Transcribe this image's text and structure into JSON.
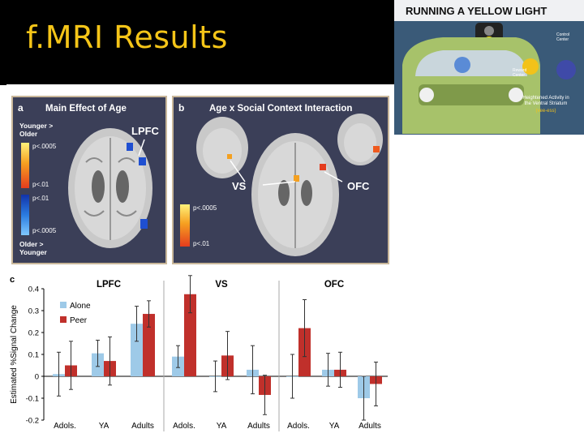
{
  "slide": {
    "title": "f.MRI Results"
  },
  "panel_a": {
    "label": "a",
    "title": "Main Effect of Age",
    "legend_top": "Younger >\nOlder",
    "legend_bottom": "Older >\nYounger",
    "p_labels": [
      "p<.0005",
      "p<.01",
      "p<.01",
      "p<.0005"
    ],
    "region_label": "LPFC"
  },
  "panel_b": {
    "label": "b",
    "title": "Age x Social Context Interaction",
    "region_labels": [
      "VS",
      "OFC"
    ],
    "p_labels": [
      "p<.0005",
      "p<.01"
    ]
  },
  "cartoon": {
    "title": "RUNNING A YELLOW LIGHT",
    "label_control": "Control\nCenter",
    "label_reward": "Reward\nCenter",
    "caption": "Heightened Activity in\nthe Ventral Striatum",
    "caption_sub": "(vee-ess)"
  },
  "colors": {
    "alone": "#9ecae8",
    "peer": "#c0302b",
    "title_yellow": "#f5c518"
  },
  "chart_data": {
    "panel_label": "c",
    "type": "bar",
    "ylabel": "Estimated %Signal Change",
    "ylim": [
      -0.2,
      0.4
    ],
    "yticks": [
      -0.2,
      -0.1,
      0,
      0.1,
      0.2,
      0.3,
      0.4
    ],
    "ytick_labels": [
      "-0.2",
      "-0.1",
      "0",
      "0.1",
      "0.2",
      "0.3",
      "0.4"
    ],
    "categories": [
      "Adols.",
      "YA",
      "Adults"
    ],
    "legend": [
      {
        "name": "Alone"
      },
      {
        "name": "Peer"
      }
    ],
    "subplots": [
      {
        "title": "LPFC",
        "series": [
          {
            "name": "Alone",
            "values": [
              0.01,
              0.105,
              0.24
            ],
            "errors": [
              0.1,
              0.06,
              0.08
            ]
          },
          {
            "name": "Peer",
            "values": [
              0.05,
              0.07,
              0.285
            ],
            "errors": [
              0.11,
              0.11,
              0.06
            ]
          }
        ]
      },
      {
        "title": "VS",
        "series": [
          {
            "name": "Alone",
            "values": [
              0.09,
              0.0,
              0.03
            ],
            "errors": [
              0.05,
              0.07,
              0.11
            ]
          },
          {
            "name": "Peer",
            "values": [
              0.375,
              0.095,
              -0.085
            ],
            "errors": [
              0.085,
              0.11,
              0.09
            ]
          }
        ]
      },
      {
        "title": "OFC",
        "series": [
          {
            "name": "Alone",
            "values": [
              0.0,
              0.03,
              -0.1
            ],
            "errors": [
              0.1,
              0.075,
              0.1
            ]
          },
          {
            "name": "Peer",
            "values": [
              0.22,
              0.03,
              -0.035
            ],
            "errors": [
              0.13,
              0.08,
              0.1
            ]
          }
        ]
      }
    ]
  }
}
